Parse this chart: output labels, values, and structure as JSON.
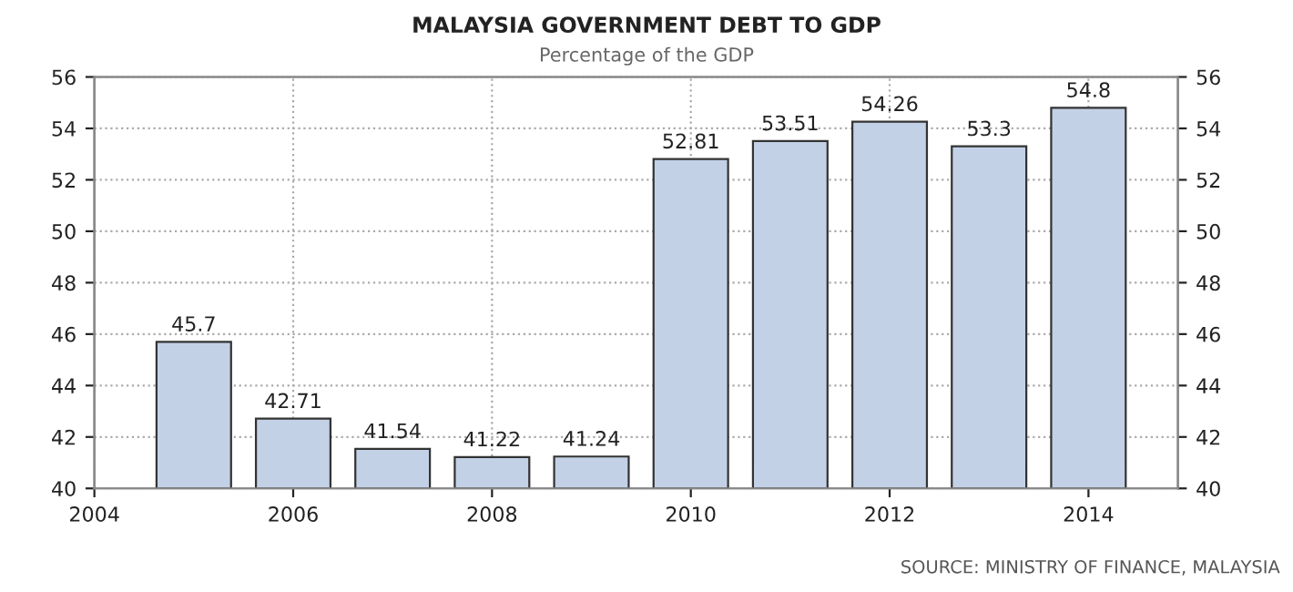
{
  "chart_data": {
    "type": "bar",
    "title": "MALAYSIA GOVERNMENT DEBT TO GDP",
    "subtitle": "Percentage of the GDP",
    "x": [
      2005,
      2006,
      2007,
      2008,
      2009,
      2010,
      2011,
      2012,
      2013,
      2014
    ],
    "values": [
      45.7,
      42.71,
      41.54,
      41.22,
      41.24,
      52.81,
      53.51,
      54.26,
      53.3,
      54.8
    ],
    "color": "#c3d1e6",
    "data_labels": true,
    "xlim": [
      2004,
      2014.9
    ],
    "xticks": [
      2004,
      2006,
      2008,
      2010,
      2012,
      2014
    ],
    "ylim": [
      40,
      56
    ],
    "yticks": [
      40,
      42,
      44,
      46,
      48,
      50,
      52,
      54,
      56
    ],
    "y2lim": [
      40,
      56
    ],
    "y2ticks": [
      40,
      42,
      44,
      46,
      48,
      50,
      52,
      54,
      56
    ],
    "grid": true,
    "annotations": [
      "SOURCE: MINISTRY OF FINANCE, MALAYSIA"
    ]
  }
}
